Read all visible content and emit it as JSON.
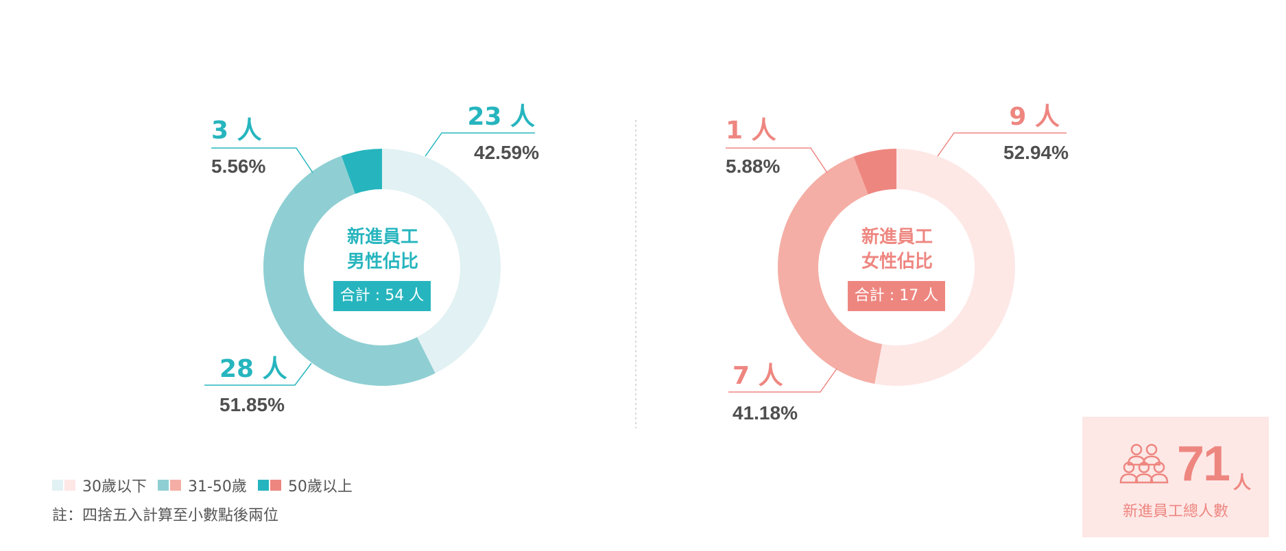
{
  "chart_data": [
    {
      "type": "pie",
      "subtype": "donut",
      "title": "新進員工 男性佔比",
      "center_title_lines": [
        "新進員工",
        "男性佔比"
      ],
      "total_label": "合計 : 54 人",
      "categories": [
        "30歲以下",
        "31-50歲",
        "50歲以上"
      ],
      "values": [
        23,
        28,
        3
      ],
      "percent_labels": [
        "42.59%",
        "51.85%",
        "5.56%"
      ],
      "count_labels": [
        "23 人",
        "28 人",
        "3 人"
      ],
      "colors": [
        "#e2f1f3",
        "#8fcfd3",
        "#26b5be"
      ],
      "accent": "#26b5be"
    },
    {
      "type": "pie",
      "subtype": "donut",
      "title": "新進員工 女性佔比",
      "center_title_lines": [
        "新進員工",
        "女性佔比"
      ],
      "total_label": "合計 : 17 人",
      "categories": [
        "30歲以下",
        "31-50歲",
        "50歲以上"
      ],
      "values": [
        9,
        7,
        1
      ],
      "percent_labels": [
        "52.94%",
        "41.18%",
        "5.88%"
      ],
      "count_labels": [
        "9 人",
        "7 人",
        "1 人"
      ],
      "colors": [
        "#fde8e6",
        "#f4aea5",
        "#ee8680"
      ],
      "accent": "#ee8680"
    }
  ],
  "legend": {
    "items": [
      {
        "label": "30歲以下",
        "colors": [
          "#e2f1f3",
          "#fde8e6"
        ]
      },
      {
        "label": "31-50歲",
        "colors": [
          "#8fcfd3",
          "#f4aea5"
        ]
      },
      {
        "label": "50歲以上",
        "colors": [
          "#26b5be",
          "#ee8680"
        ]
      }
    ]
  },
  "note": "註：四捨五入計算至小數點後兩位",
  "summary": {
    "value": "71",
    "unit": "人",
    "caption": "新進員工總人數",
    "icon": "people-group-icon"
  },
  "colors": {
    "value_text": "#4f4f4f",
    "divider": "#cccccc"
  }
}
